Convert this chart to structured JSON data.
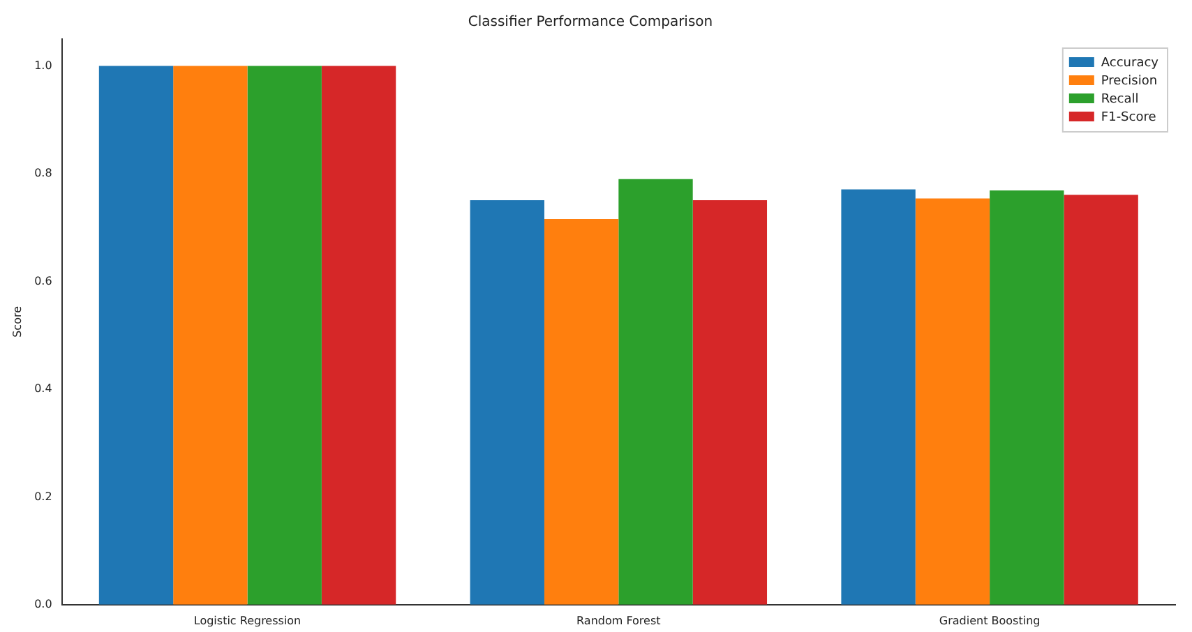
{
  "chart_data": {
    "type": "bar",
    "title": "Classifier Performance Comparison",
    "ylabel": "Score",
    "categories": [
      "Logistic Regression",
      "Random Forest",
      "Gradient Boosting"
    ],
    "series": [
      {
        "name": "Accuracy",
        "color": "#1f77b4",
        "values": [
          1.0,
          0.751,
          0.771
        ]
      },
      {
        "name": "Precision",
        "color": "#ff7f0e",
        "values": [
          1.0,
          0.716,
          0.754
        ]
      },
      {
        "name": "Recall",
        "color": "#2ca02c",
        "values": [
          1.0,
          0.79,
          0.769
        ]
      },
      {
        "name": "F1-Score",
        "color": "#d62728",
        "values": [
          1.0,
          0.751,
          0.761
        ]
      }
    ],
    "ylim": [
      0,
      1.05
    ],
    "yticks": [
      {
        "value": 0,
        "label": "0.0"
      },
      {
        "value": 0.2,
        "label": "0.2"
      },
      {
        "value": 0.4,
        "label": "0.4"
      },
      {
        "value": 0.6,
        "label": "0.6"
      },
      {
        "value": 0.8,
        "label": "0.8"
      },
      {
        "value": 1.0,
        "label": "1.0"
      }
    ],
    "grid": false,
    "legend": "top right"
  }
}
